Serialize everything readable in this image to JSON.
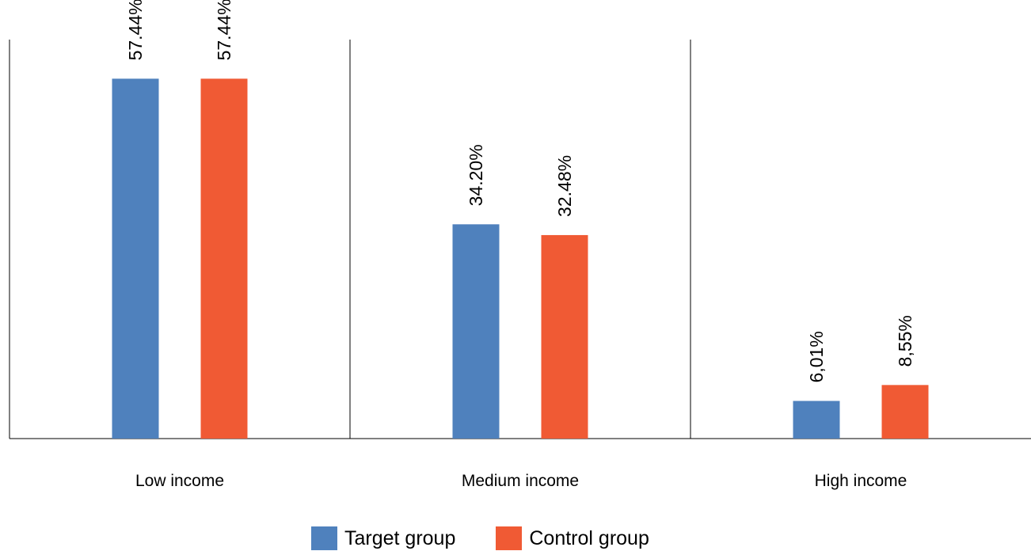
{
  "chart_data": {
    "type": "bar",
    "categories": [
      "Low income",
      "Medium income",
      "High income"
    ],
    "series": [
      {
        "name": "Target group",
        "color": "#4f81bd",
        "values": [
          57.44,
          34.2,
          6.01
        ],
        "labels": [
          "57.44%",
          "34.20%",
          "6,01%"
        ]
      },
      {
        "name": "Control group",
        "color": "#f05a34",
        "values": [
          57.44,
          32.48,
          8.55
        ],
        "labels": [
          "57.44%",
          "32.48%",
          "8,55%"
        ]
      }
    ],
    "ylim": [
      0,
      70
    ],
    "grid": false,
    "legend_position": "bottom"
  }
}
